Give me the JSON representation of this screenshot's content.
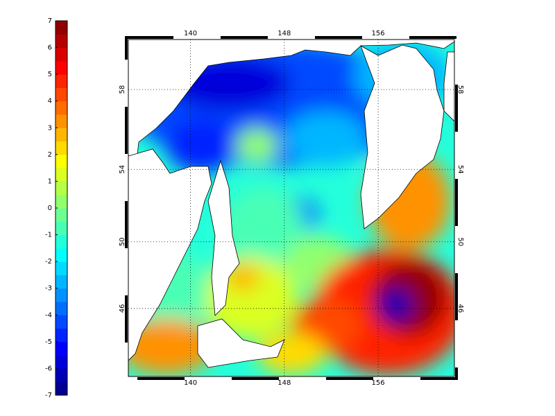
{
  "colorbar": {
    "lim": [
      -7,
      7
    ],
    "ticks": [
      7,
      6,
      5,
      4,
      3,
      2,
      1,
      0,
      -1,
      -2,
      -3,
      -4,
      -5,
      -6,
      -7
    ],
    "colors": [
      "#000092",
      "#0000b6",
      "#0000db",
      "#0000ff",
      "#0024ff",
      "#0049ff",
      "#006dff",
      "#0092ff",
      "#00b6ff",
      "#00dbff",
      "#00ffff",
      "#24ffdb",
      "#49ffb6",
      "#6dff92",
      "#92ff6d",
      "#b6ff49",
      "#dbff24",
      "#ffff00",
      "#ffdb00",
      "#ffb600",
      "#ff9200",
      "#ff6d00",
      "#ff4900",
      "#ff2400",
      "#ff0000",
      "#db0000",
      "#b60000",
      "#920000"
    ]
  },
  "map": {
    "projection": "mercator",
    "xlim": [
      134.7,
      162.5
    ],
    "ylim": [
      41.6,
      60.3
    ],
    "xticks": [
      140,
      148,
      156
    ],
    "yticks": [
      46,
      50,
      54,
      58
    ],
    "grid": true
  }
}
